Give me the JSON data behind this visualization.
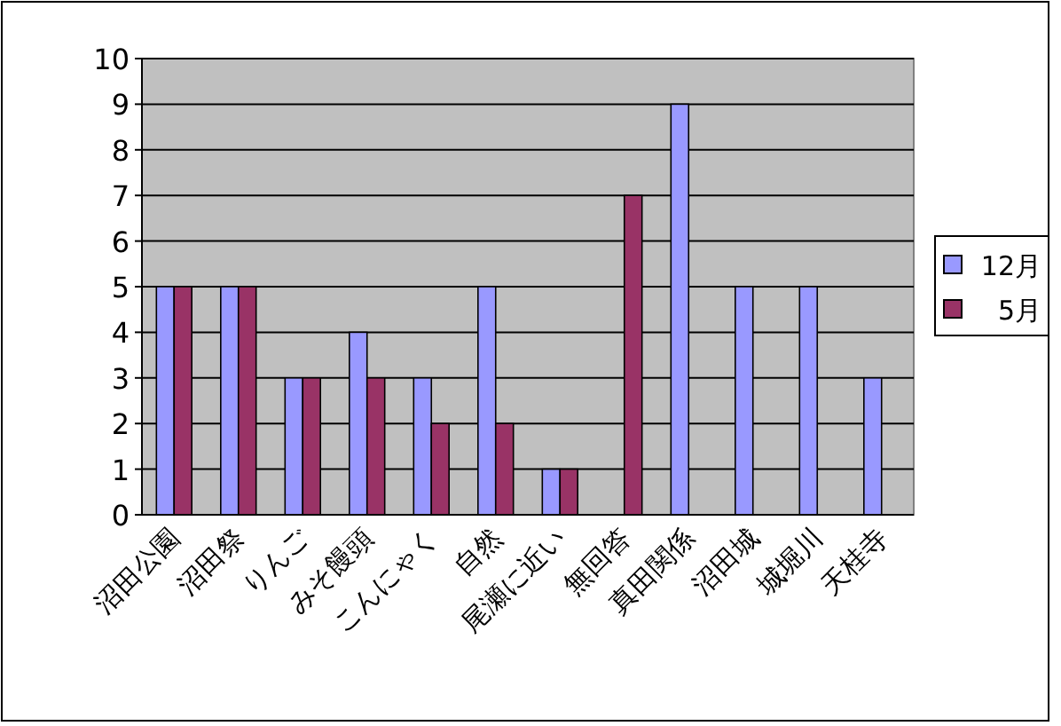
{
  "chart_data": {
    "type": "bar",
    "categories": [
      "沼田公園",
      "沼田祭",
      "りんご",
      "みそ饅頭",
      "こんにゃく",
      "自然",
      "尾瀬に近い",
      "無回答",
      "真田関係",
      "沼田城",
      "城堀川",
      "天桂寺"
    ],
    "series": [
      {
        "name": "12月",
        "color": "#9999ff",
        "values": [
          5,
          5,
          3,
          4,
          3,
          5,
          1,
          null,
          9,
          5,
          5,
          3
        ]
      },
      {
        "name": "5月",
        "color": "#993366",
        "values": [
          5,
          5,
          3,
          3,
          2,
          2,
          1,
          7,
          null,
          null,
          null,
          null
        ]
      }
    ],
    "ylim": [
      0,
      10
    ],
    "yticks": [
      0,
      1,
      2,
      3,
      4,
      5,
      6,
      7,
      8,
      9,
      10
    ],
    "grid": "y",
    "legend": "right"
  }
}
